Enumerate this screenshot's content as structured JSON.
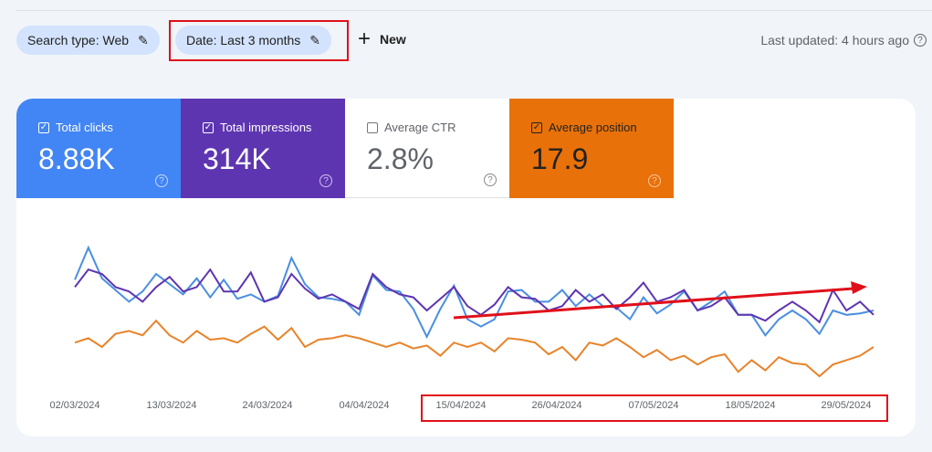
{
  "filters": {
    "search_type": "Search type: Web",
    "date": "Date: Last 3 months",
    "new_label": "New",
    "last_updated": "Last updated: 4 hours ago"
  },
  "metrics": [
    {
      "label": "Total clicks",
      "value": "8.88K",
      "checked": true,
      "color": "#4285f4"
    },
    {
      "label": "Total impressions",
      "value": "314K",
      "checked": true,
      "color": "#5e35b1"
    },
    {
      "label": "Average CTR",
      "value": "2.8%",
      "checked": false,
      "color": "#ffffff"
    },
    {
      "label": "Average position",
      "value": "17.9",
      "checked": true,
      "color": "#e8710a"
    }
  ],
  "chart_data": {
    "type": "line",
    "x_tick_labels": [
      "02/03/2024",
      "13/03/2024",
      "24/03/2024",
      "04/04/2024",
      "15/04/2024",
      "26/04/2024",
      "07/05/2024",
      "18/05/2024",
      "29/05/2024"
    ],
    "grid": false,
    "series": [
      {
        "name": "Total clicks",
        "color": "#4a8fe0",
        "values": [
          71,
          93,
          72,
          64,
          56,
          63,
          75,
          68,
          61,
          72,
          59,
          71,
          58,
          61,
          56,
          60,
          86,
          68,
          59,
          58,
          56,
          47,
          74,
          64,
          63,
          51,
          32,
          51,
          67,
          44,
          39,
          44,
          63,
          64,
          56,
          56,
          64,
          53,
          61,
          53,
          52,
          44,
          59,
          48,
          54,
          63,
          50,
          56,
          63,
          47,
          47,
          33,
          44,
          50,
          44,
          34,
          50,
          47,
          48,
          50
        ]
      },
      {
        "name": "Total impressions",
        "color": "#5e35b1",
        "values": [
          66,
          78,
          75,
          66,
          63,
          56,
          66,
          73,
          63,
          66,
          78,
          63,
          63,
          76,
          56,
          59,
          75,
          65,
          58,
          61,
          56,
          51,
          75,
          66,
          61,
          59,
          50,
          58,
          66,
          53,
          47,
          54,
          66,
          59,
          58,
          50,
          53,
          64,
          56,
          61,
          51,
          59,
          69,
          56,
          59,
          64,
          50,
          53,
          59,
          47,
          47,
          43,
          50,
          56,
          50,
          42,
          64,
          50,
          56,
          47
        ]
      },
      {
        "name": "Average position",
        "color": "#e8832a",
        "values": [
          28,
          31,
          25,
          34,
          36,
          33,
          43,
          33,
          28,
          36,
          30,
          31,
          28,
          34,
          39,
          30,
          38,
          25,
          30,
          31,
          33,
          31,
          28,
          25,
          28,
          24,
          26,
          19,
          28,
          25,
          28,
          22,
          31,
          30,
          28,
          20,
          25,
          16,
          28,
          26,
          31,
          25,
          18,
          23,
          16,
          19,
          13,
          18,
          20,
          8,
          16,
          9,
          18,
          14,
          13,
          5,
          13,
          16,
          19,
          25
        ]
      }
    ]
  },
  "annotations": {
    "color": "#e0101a"
  }
}
